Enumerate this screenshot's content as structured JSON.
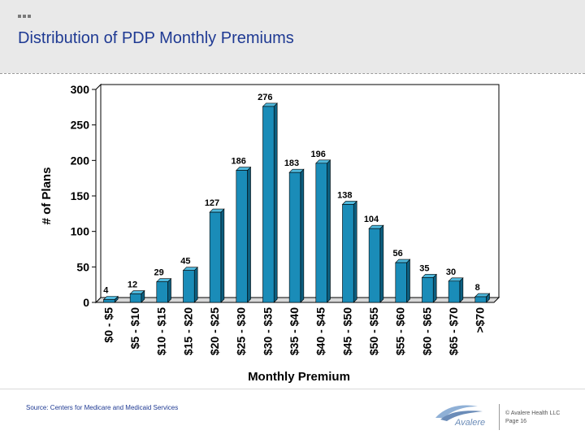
{
  "slide": {
    "title": "Distribution of PDP Monthly Premiums",
    "source": "Source: Centers for Medicare and Medicaid Services",
    "logo_text": "Avalere",
    "copyright_line1": "© Avalere Health LLC",
    "copyright_line2": "Page 16",
    "accent_color": "#1f3a93"
  },
  "chart_data": {
    "type": "bar",
    "title": "",
    "xlabel": "Monthly Premium",
    "ylabel": "# of Plans",
    "ylim": [
      0,
      300
    ],
    "yticks": [
      0,
      50,
      100,
      150,
      200,
      250,
      300
    ],
    "grid": false,
    "bar_color": "#1a8cb8",
    "categories": [
      "$0 - $5",
      "$5 - $10",
      "$10 - $15",
      "$15 - $20",
      "$20 - $25",
      "$25 - $30",
      "$30 - $35",
      "$35 - $40",
      "$40 - $45",
      "$45 - $50",
      "$50 - $55",
      "$55 - $60",
      "$60 - $65",
      "$65 - $70",
      ">$70"
    ],
    "values": [
      4,
      12,
      29,
      45,
      127,
      186,
      276,
      183,
      196,
      138,
      104,
      56,
      35,
      30,
      8
    ]
  }
}
